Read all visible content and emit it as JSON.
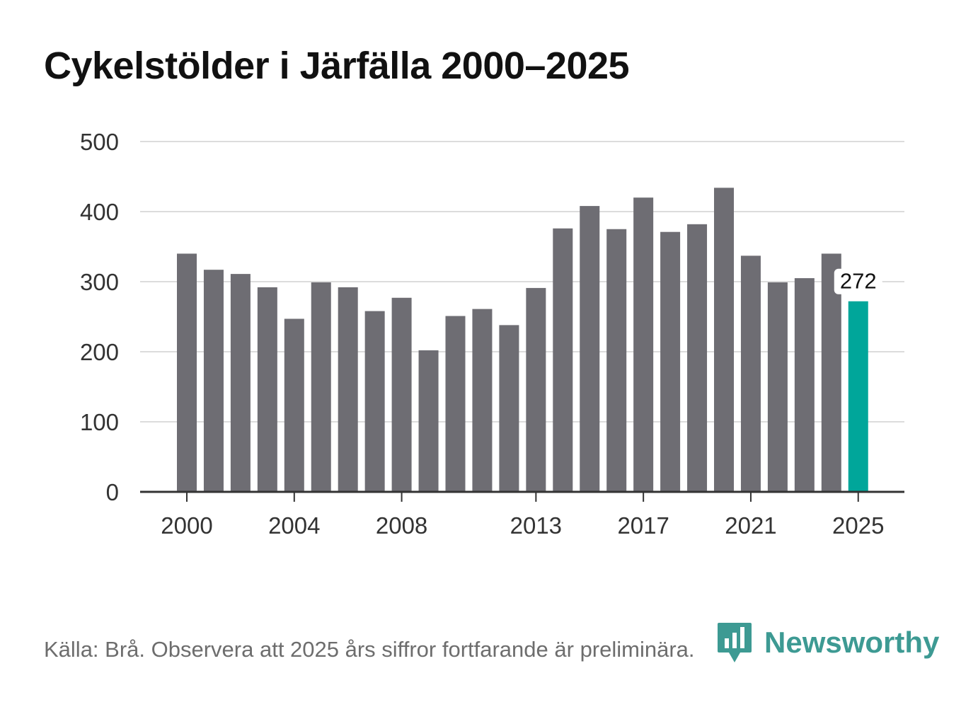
{
  "title": "Cykelstölder i Järfälla 2000–2025",
  "source": "Källa: Brå. Observera att 2025 års siffror fortfarande är preliminära.",
  "brand": {
    "name": "Newsworthy",
    "icon": "newsworthy-logo-icon",
    "color": "#3d9a93"
  },
  "colors": {
    "bar": "#6e6d73",
    "highlight": "#00a69a",
    "grid": "#dcdcdc",
    "axis": "#333333"
  },
  "chart_data": {
    "type": "bar",
    "title": "Cykelstölder i Järfälla 2000–2025",
    "xlabel": "",
    "ylabel": "",
    "ylim": [
      0,
      500
    ],
    "yticks": [
      0,
      100,
      200,
      300,
      400,
      500
    ],
    "xtick_labels": [
      "2000",
      "2004",
      "2008",
      "2013",
      "2017",
      "2021",
      "2025"
    ],
    "categories": [
      "2000",
      "2001",
      "2002",
      "2003",
      "2004",
      "2005",
      "2006",
      "2007",
      "2008",
      "2009",
      "2010",
      "2011",
      "2012",
      "2013",
      "2014",
      "2015",
      "2016",
      "2017",
      "2018",
      "2019",
      "2020",
      "2021",
      "2022",
      "2023",
      "2024",
      "2025"
    ],
    "values": [
      340,
      317,
      311,
      292,
      247,
      299,
      292,
      258,
      277,
      202,
      251,
      261,
      238,
      291,
      376,
      408,
      375,
      420,
      371,
      382,
      434,
      337,
      299,
      305,
      340,
      272
    ],
    "highlight": {
      "category": "2025",
      "label": "272"
    },
    "grid": true
  }
}
